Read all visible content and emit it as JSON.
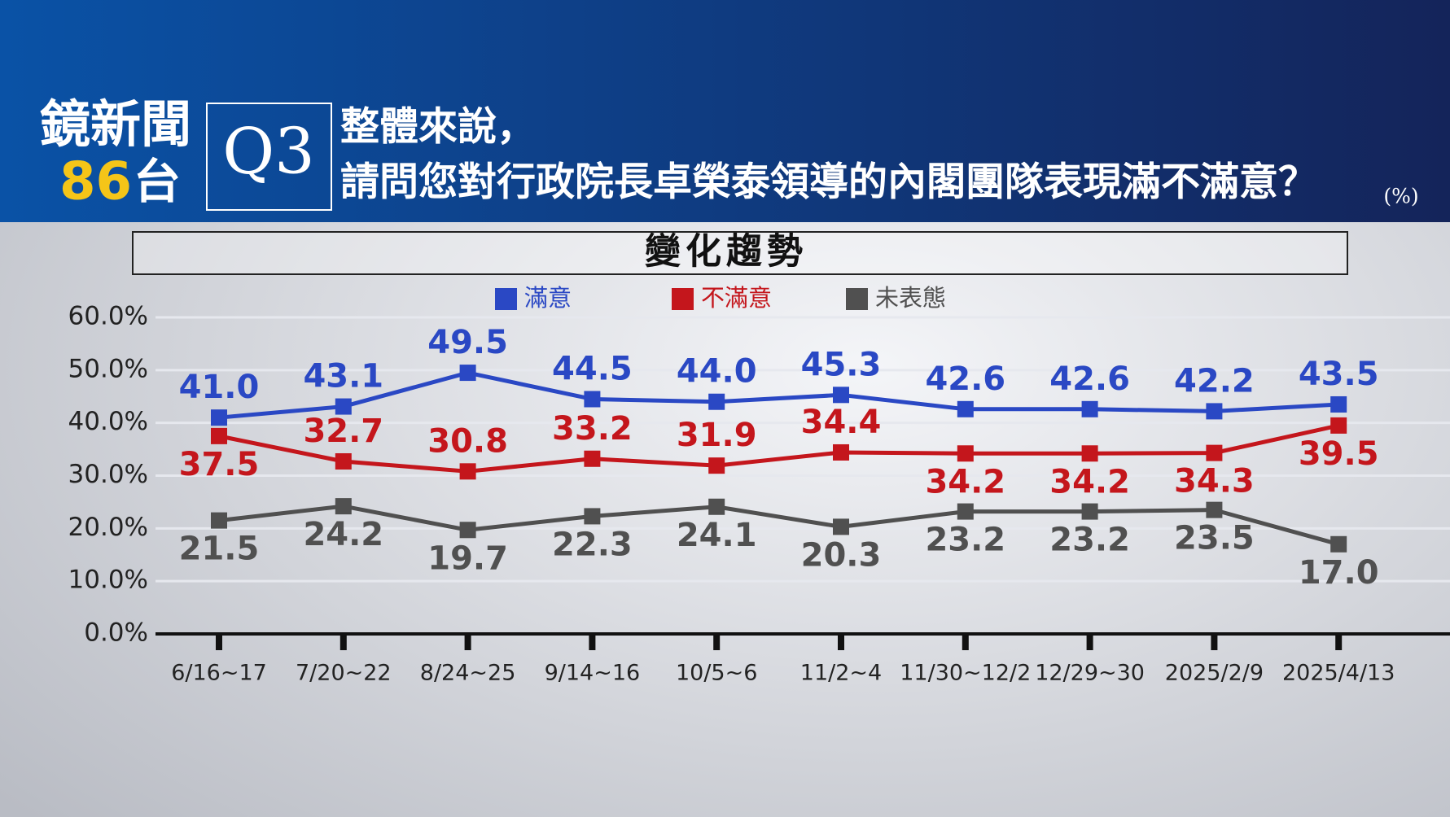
{
  "header": {
    "logo_line1": "鏡新聞",
    "logo_number": "86",
    "logo_suffix": "台",
    "question_no": "Q3",
    "question_line1": "整體來說，",
    "question_line2": "請問您對行政院長卓榮泰領導的內閣團隊表現滿不滿意？",
    "unit": "(%)"
  },
  "chart_data": {
    "type": "line",
    "title": "變化趨勢",
    "categories": [
      "6/16~17",
      "7/20~22",
      "8/24~25",
      "9/14~16",
      "10/5~6",
      "11/2~4",
      "11/30~12/2",
      "12/29~30",
      "2025/2/9",
      "2025/4/13"
    ],
    "series": [
      {
        "name": "滿意",
        "color": "#2a48c4",
        "values": [
          41.0,
          43.1,
          49.5,
          44.5,
          44.0,
          45.3,
          42.6,
          42.6,
          42.2,
          43.5
        ],
        "value_labels": [
          "41.0",
          "43.1",
          "49.5",
          "44.5",
          "44.0",
          "45.3",
          "42.6",
          "42.6",
          "42.2",
          "43.5"
        ]
      },
      {
        "name": "不滿意",
        "color": "#c4161c",
        "values": [
          37.5,
          32.7,
          30.8,
          33.2,
          31.9,
          34.4,
          34.2,
          34.2,
          34.3,
          39.5
        ],
        "value_labels": [
          "37.5",
          "32.7",
          "30.8",
          "33.2",
          "31.9",
          "34.4",
          "34.2",
          "34.2",
          "34.3",
          "39.5"
        ]
      },
      {
        "name": "未表態",
        "color": "#505050",
        "values": [
          21.5,
          24.2,
          19.7,
          22.3,
          24.1,
          20.3,
          23.2,
          23.2,
          23.5,
          17.0
        ],
        "value_labels": [
          "21.5",
          "24.2",
          "19.7",
          "22.3",
          "24.1",
          "20.3",
          "23.2",
          "23.2",
          "23.5",
          "17.0"
        ]
      }
    ],
    "ylim": [
      0,
      60
    ],
    "yticks": [
      {
        "value": 0,
        "label": "0.0%"
      },
      {
        "value": 10,
        "label": "10.0%"
      },
      {
        "value": 20,
        "label": "20.0%"
      },
      {
        "value": 30,
        "label": "30.0%"
      },
      {
        "value": 40,
        "label": "40.0%"
      },
      {
        "value": 50,
        "label": "50.0%"
      },
      {
        "value": 60,
        "label": "60.0%"
      }
    ],
    "grid": true
  }
}
